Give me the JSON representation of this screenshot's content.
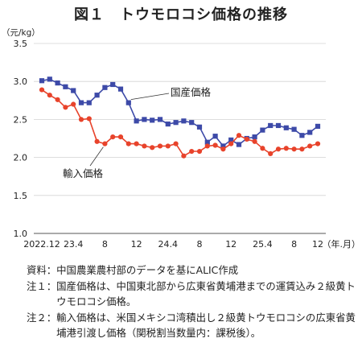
{
  "title": "図１　トウモロコシ価格の推移",
  "chart_data": {
    "type": "line",
    "unit_label": "（元/kg）",
    "x_end_label": "（年.月）",
    "x_tick_labels": [
      "2022.12",
      "23.4",
      "8",
      "12",
      "24.4",
      "8",
      "12",
      "25.4",
      "8",
      "12"
    ],
    "y_ticks": [
      "1.0",
      "1.5",
      "2.0",
      "2.5",
      "3.0",
      "3.5"
    ],
    "ylim": [
      1.0,
      3.5
    ],
    "grid": true,
    "series": [
      {
        "name": "国産価格",
        "color": "#3d4aa8",
        "marker": "square",
        "values": [
          3.01,
          3.03,
          2.98,
          2.93,
          2.88,
          2.72,
          2.72,
          2.82,
          2.92,
          2.96,
          2.9,
          2.72,
          2.48,
          2.5,
          2.49,
          2.5,
          2.44,
          2.46,
          2.48,
          2.46,
          2.4,
          2.2,
          2.28,
          2.15,
          2.23,
          2.17,
          2.25,
          2.27,
          2.36,
          2.42,
          2.42,
          2.39,
          2.37,
          2.29,
          2.33,
          2.41
        ]
      },
      {
        "name": "輸入価格",
        "color": "#e8432b",
        "marker": "circle",
        "values": [
          2.89,
          2.82,
          2.76,
          2.66,
          2.7,
          2.5,
          2.51,
          2.21,
          2.18,
          2.27,
          2.27,
          2.18,
          2.18,
          2.15,
          2.13,
          2.15,
          2.15,
          2.18,
          2.02,
          2.08,
          2.08,
          2.15,
          2.16,
          2.11,
          2.18,
          2.29,
          2.24,
          2.21,
          2.12,
          2.05,
          2.11,
          2.12,
          2.11,
          2.11,
          2.15,
          2.18
        ]
      }
    ]
  },
  "notes": [
    {
      "head": "資料：",
      "text": "中国農業農村部のデータを基にALIC作成"
    },
    {
      "head": "注１：",
      "text": "国産価格は、中国東北部から広東省黄埔港までの運賃込み２級黄トウモロコシ価格。"
    },
    {
      "head": "注２：",
      "text": "輸入価格は、米国メキシコ湾積出し２級黄トウモロコシの広東省黄埔港引渡し価格（関税割当数量内：課税後）。"
    }
  ]
}
